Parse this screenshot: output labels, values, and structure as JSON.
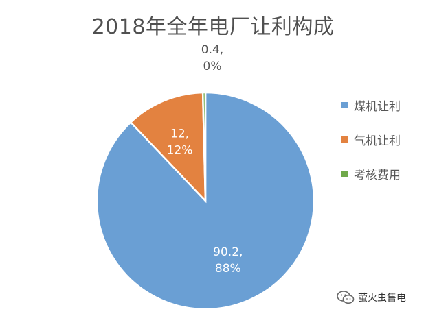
{
  "chart_data": {
    "type": "pie",
    "title": "2018年全年电厂让利构成",
    "slices": [
      {
        "name": "煤机让利",
        "value": 90.2,
        "value_label": "90.2,",
        "percent_label": "88%",
        "color": "#6a9fd4"
      },
      {
        "name": "气机让利",
        "value": 12,
        "value_label": "12,",
        "percent_label": "12%",
        "color": "#e38240"
      },
      {
        "name": "考核费用",
        "value": 0.4,
        "value_label": "0.4,",
        "percent_label": "0%",
        "color": "#70a94a"
      }
    ],
    "legend": "right",
    "start_angle": "12 o'clock, clockwise"
  },
  "watermark": {
    "text": "萤火虫售电",
    "icon": "wechat-icon"
  }
}
